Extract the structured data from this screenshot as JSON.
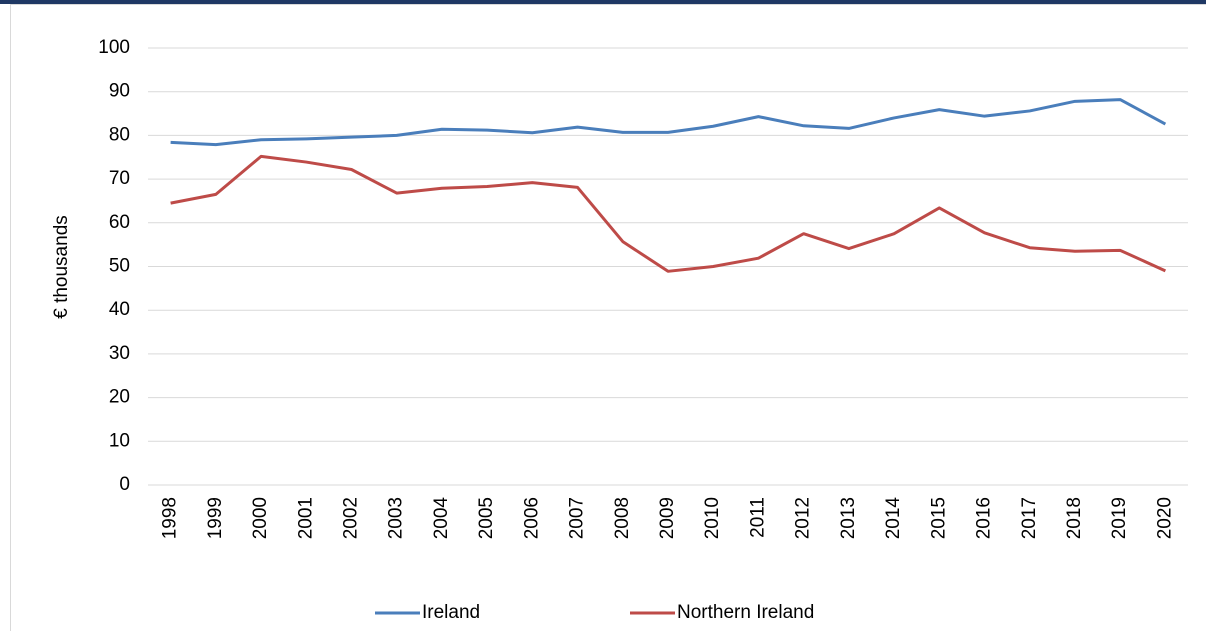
{
  "chart_data": {
    "type": "line",
    "y_label": "€ thousands",
    "categories": [
      "1998",
      "1999",
      "2000",
      "2001",
      "2002",
      "2003",
      "2004",
      "2005",
      "2006",
      "2007",
      "2008",
      "2009",
      "2010",
      "2011",
      "2012",
      "2013",
      "2014",
      "2015",
      "2016",
      "2017",
      "2018",
      "2019",
      "2020"
    ],
    "series": [
      {
        "name": "Ireland",
        "color": "#4a7ebb",
        "values": [
          78.4,
          77.9,
          79.0,
          79.2,
          79.6,
          80.0,
          81.4,
          81.2,
          80.6,
          81.9,
          80.7,
          80.7,
          82.1,
          84.3,
          82.2,
          81.6,
          84.0,
          85.9,
          84.4,
          85.6,
          87.8,
          88.2,
          82.6
        ]
      },
      {
        "name": "Northern Ireland",
        "color": "#be4b48",
        "values": [
          64.5,
          66.5,
          75.2,
          73.9,
          72.2,
          66.8,
          67.9,
          68.3,
          69.2,
          68.1,
          55.7,
          48.9,
          50.0,
          51.9,
          57.5,
          54.1,
          57.5,
          63.4,
          57.7,
          54.3,
          53.5,
          53.7,
          49.0
        ]
      }
    ],
    "ylim": [
      0,
      100
    ],
    "yticks": [
      0,
      10,
      20,
      30,
      40,
      50,
      60,
      70,
      80,
      90,
      100
    ],
    "grid": true,
    "legend": "bottom"
  }
}
